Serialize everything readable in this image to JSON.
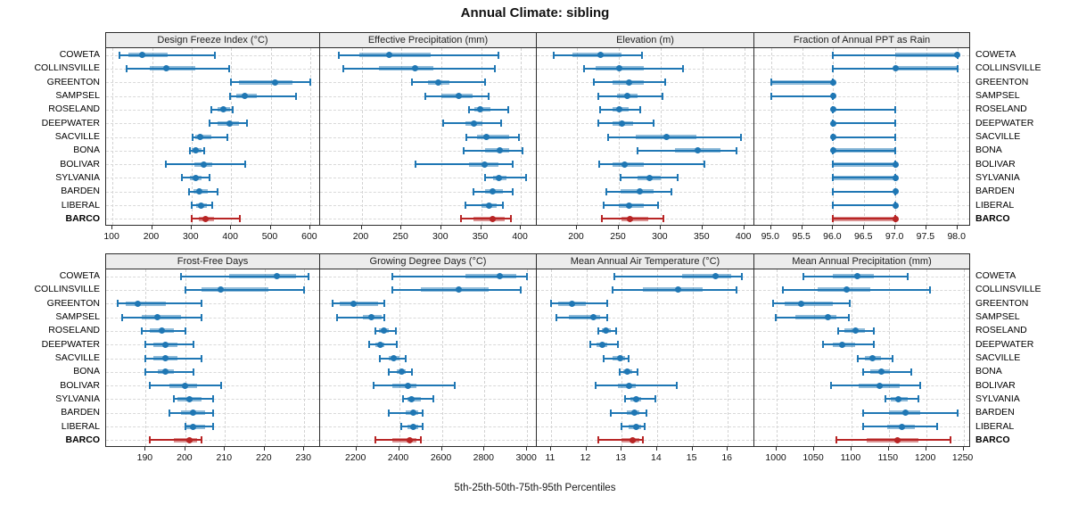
{
  "title": "Annual Climate: sibling",
  "footer": "5th-25th-50th-75th-95th Percentiles",
  "colors": {
    "series_blue": "#1f77b4",
    "series_blue_box": "rgba(31,119,180,0.5)",
    "highlight_red": "#b82525",
    "highlight_red_box": "rgba(184,37,37,0.5)",
    "header_bg": "#ececec",
    "border": "#2b2b2b",
    "gridline": "#d5d5d5"
  },
  "stations": [
    "COWETA",
    "COLLINSVILLE",
    "GREENTON",
    "SAMPSEL",
    "ROSELAND",
    "DEEPWATER",
    "SACVILLE",
    "BONA",
    "BOLIVAR",
    "SYLVANIA",
    "BARDEN",
    "LIBERAL",
    "BARCO"
  ],
  "highlight_station": "BARCO",
  "chart_data": {
    "type": "scatter",
    "subtype": "percentile-interval-trellis",
    "title": "Annual Climate: sibling",
    "legend": "5th-25th-50th-75th-95th Percentiles",
    "grid": true,
    "categories": [
      "COWETA",
      "COLLINSVILLE",
      "GREENTON",
      "SAMPSEL",
      "ROSELAND",
      "DEEPWATER",
      "SACVILLE",
      "BONA",
      "BOLIVAR",
      "SYLVANIA",
      "BARDEN",
      "LIBERAL",
      "BARCO"
    ],
    "percentile_labels": [
      "p5",
      "p25",
      "p50",
      "p75",
      "p95"
    ],
    "panels": [
      {
        "title": "Design Freeze Index (°C)",
        "xlim": [
          84,
          625
        ],
        "ticks": [
          100,
          200,
          300,
          400,
          500,
          600
        ],
        "tick_labels": [
          "100",
          "200",
          "300",
          "400",
          "500",
          "600"
        ],
        "values": [
          [
            118,
            140,
            175,
            240,
            360
          ],
          [
            135,
            195,
            235,
            310,
            395
          ],
          [
            400,
            420,
            510,
            555,
            600
          ],
          [
            398,
            412,
            435,
            465,
            565
          ],
          [
            350,
            365,
            380,
            398,
            405
          ],
          [
            345,
            365,
            395,
            420,
            440
          ],
          [
            303,
            310,
            322,
            350,
            390
          ],
          [
            295,
            300,
            310,
            325,
            332
          ],
          [
            235,
            308,
            330,
            352,
            435
          ],
          [
            275,
            295,
            310,
            325,
            345
          ],
          [
            293,
            305,
            320,
            340,
            365
          ],
          [
            300,
            312,
            325,
            340,
            352
          ],
          [
            300,
            318,
            335,
            357,
            422
          ]
        ]
      },
      {
        "title": "Effective Precipitation (mm)",
        "xlim": [
          148,
          420
        ],
        "ticks": [
          200,
          250,
          300,
          350,
          400
        ],
        "tick_labels": [
          "200",
          "250",
          "300",
          "350",
          "400"
        ],
        "values": [
          [
            172,
            197,
            235,
            287,
            372
          ],
          [
            177,
            222,
            267,
            290,
            367
          ],
          [
            263,
            283,
            296,
            310,
            355
          ],
          [
            280,
            300,
            322,
            340,
            360
          ],
          [
            335,
            342,
            349,
            362,
            384
          ],
          [
            302,
            330,
            341,
            352,
            375
          ],
          [
            332,
            345,
            357,
            385,
            398
          ],
          [
            328,
            355,
            373,
            385,
            402
          ],
          [
            268,
            335,
            354,
            372,
            390
          ],
          [
            355,
            365,
            372,
            382,
            406
          ],
          [
            340,
            355,
            365,
            378,
            390
          ],
          [
            330,
            350,
            360,
            370,
            377
          ],
          [
            325,
            340,
            364,
            380,
            387
          ]
        ]
      },
      {
        "title": "Elevation (m)",
        "xlim": [
          152,
          412
        ],
        "ticks": [
          200,
          250,
          300,
          350,
          400
        ],
        "tick_labels": [
          "200",
          "250",
          "300",
          "350",
          "400"
        ],
        "values": [
          [
            172,
            195,
            228,
            253,
            278
          ],
          [
            208,
            222,
            250,
            280,
            327
          ],
          [
            220,
            243,
            262,
            280,
            305
          ],
          [
            225,
            248,
            260,
            272,
            302
          ],
          [
            228,
            243,
            251,
            262,
            276
          ],
          [
            225,
            243,
            254,
            267,
            292
          ],
          [
            237,
            270,
            307,
            343,
            396
          ],
          [
            272,
            317,
            344,
            372,
            391
          ],
          [
            227,
            242,
            257,
            280,
            352
          ],
          [
            252,
            272,
            287,
            300,
            320
          ],
          [
            235,
            252,
            275,
            292,
            313
          ],
          [
            232,
            250,
            262,
            280,
            297
          ],
          [
            230,
            253,
            263,
            285,
            303
          ]
        ]
      },
      {
        "title": "Fraction of Annual PPT as Rain",
        "xlim": [
          94.73,
          98.22
        ],
        "ticks": [
          95.0,
          95.5,
          96.0,
          96.5,
          97.0,
          97.5,
          98.0
        ],
        "tick_labels": [
          "95.0",
          "95.5",
          "96.0",
          "96.5",
          "97.0",
          "97.5",
          "98.0"
        ],
        "values": [
          [
            96,
            97,
            98,
            98,
            98
          ],
          [
            96,
            97,
            97,
            98,
            98
          ],
          [
            95,
            95,
            96,
            96,
            96
          ],
          [
            95,
            96,
            96,
            96,
            96
          ],
          [
            96,
            96,
            96,
            96,
            97
          ],
          [
            96,
            96,
            96,
            96,
            97
          ],
          [
            96,
            96,
            96,
            96,
            97
          ],
          [
            96,
            96,
            96,
            97,
            97
          ],
          [
            96,
            96,
            97,
            97,
            97
          ],
          [
            96,
            96,
            97,
            97,
            97
          ],
          [
            96,
            97,
            97,
            97,
            97
          ],
          [
            96,
            97,
            97,
            97,
            97
          ],
          [
            96,
            96,
            97,
            97,
            97
          ]
        ]
      },
      {
        "title": "Frost-Free Days",
        "xlim": [
          180,
          234
        ],
        "ticks": [
          190,
          200,
          210,
          220,
          230
        ],
        "tick_labels": [
          "190",
          "200",
          "210",
          "220",
          "230"
        ],
        "values": [
          [
            199,
            211,
            223,
            228,
            231
          ],
          [
            200,
            204,
            209,
            221,
            230
          ],
          [
            183,
            185,
            188,
            195,
            204
          ],
          [
            184,
            189,
            193,
            199,
            204
          ],
          [
            189,
            191,
            194,
            197,
            200
          ],
          [
            190,
            192,
            195,
            198,
            202
          ],
          [
            190,
            192,
            195,
            198,
            204
          ],
          [
            190,
            193,
            195,
            197,
            202
          ],
          [
            191,
            196,
            200,
            203,
            209
          ],
          [
            197,
            198,
            201,
            204,
            207
          ],
          [
            196,
            199,
            202,
            205,
            207
          ],
          [
            200,
            200,
            202,
            205,
            207
          ],
          [
            191,
            197,
            201,
            203,
            204
          ]
        ]
      },
      {
        "title": "Growing Degree Days (°C)",
        "xlim": [
          2030,
          3045
        ],
        "ticks": [
          2200,
          2400,
          2600,
          2800,
          3000
        ],
        "tick_labels": [
          "2200",
          "2400",
          "2600",
          "2800",
          "3000"
        ],
        "values": [
          [
            2370,
            2710,
            2870,
            2950,
            3000
          ],
          [
            2370,
            2500,
            2680,
            2820,
            2970
          ],
          [
            2090,
            2120,
            2185,
            2300,
            2330
          ],
          [
            2110,
            2230,
            2270,
            2320,
            2330
          ],
          [
            2290,
            2305,
            2330,
            2350,
            2385
          ],
          [
            2260,
            2290,
            2310,
            2330,
            2390
          ],
          [
            2310,
            2350,
            2375,
            2400,
            2430
          ],
          [
            2350,
            2390,
            2410,
            2430,
            2460
          ],
          [
            2280,
            2370,
            2440,
            2480,
            2660
          ],
          [
            2420,
            2440,
            2460,
            2500,
            2560
          ],
          [
            2350,
            2430,
            2465,
            2490,
            2510
          ],
          [
            2410,
            2440,
            2465,
            2490,
            2510
          ],
          [
            2290,
            2370,
            2450,
            2480,
            2500
          ]
        ]
      },
      {
        "title": "Mean Annual Air Temperature (°C)",
        "xlim": [
          10.6,
          16.75
        ],
        "ticks": [
          11,
          12,
          13,
          14,
          15,
          16
        ],
        "tick_labels": [
          "11",
          "12",
          "13",
          "14",
          "15",
          "16"
        ],
        "values": [
          [
            12.8,
            14.7,
            15.65,
            16.1,
            16.4
          ],
          [
            12.75,
            13.6,
            14.6,
            15.3,
            16.25
          ],
          [
            11.0,
            11.2,
            11.6,
            12.0,
            12.6
          ],
          [
            11.15,
            11.5,
            12.2,
            12.4,
            12.6
          ],
          [
            12.35,
            12.45,
            12.55,
            12.7,
            12.85
          ],
          [
            12.1,
            12.3,
            12.45,
            12.6,
            12.9
          ],
          [
            12.5,
            12.75,
            12.95,
            13.1,
            13.2
          ],
          [
            12.95,
            13.05,
            13.15,
            13.3,
            13.45
          ],
          [
            12.25,
            12.9,
            13.2,
            13.4,
            14.55
          ],
          [
            13.1,
            13.25,
            13.4,
            13.55,
            13.95
          ],
          [
            12.7,
            13.15,
            13.35,
            13.5,
            13.7
          ],
          [
            13.0,
            13.2,
            13.4,
            13.55,
            13.65
          ],
          [
            12.35,
            13.0,
            13.3,
            13.5,
            13.6
          ]
        ]
      },
      {
        "title": "Mean Annual Precipitation (mm)",
        "xlim": [
          970,
          1260
        ],
        "ticks": [
          1000,
          1050,
          1100,
          1150,
          1200,
          1250
        ],
        "tick_labels": [
          "1000",
          "1050",
          "1100",
          "1150",
          "1200",
          "1250"
        ],
        "values": [
          [
            1035,
            1075,
            1108,
            1130,
            1175
          ],
          [
            1008,
            1055,
            1093,
            1125,
            1205
          ],
          [
            995,
            1010,
            1032,
            1075,
            1098
          ],
          [
            998,
            1025,
            1068,
            1080,
            1097
          ],
          [
            1082,
            1090,
            1105,
            1118,
            1130
          ],
          [
            1062,
            1075,
            1088,
            1105,
            1130
          ],
          [
            1108,
            1118,
            1128,
            1140,
            1155
          ],
          [
            1115,
            1125,
            1140,
            1152,
            1180
          ],
          [
            1073,
            1110,
            1138,
            1165,
            1192
          ],
          [
            1145,
            1152,
            1163,
            1175,
            1190
          ],
          [
            1115,
            1150,
            1172,
            1192,
            1242
          ],
          [
            1115,
            1148,
            1168,
            1185,
            1215
          ],
          [
            1080,
            1120,
            1162,
            1190,
            1232
          ]
        ]
      }
    ]
  }
}
